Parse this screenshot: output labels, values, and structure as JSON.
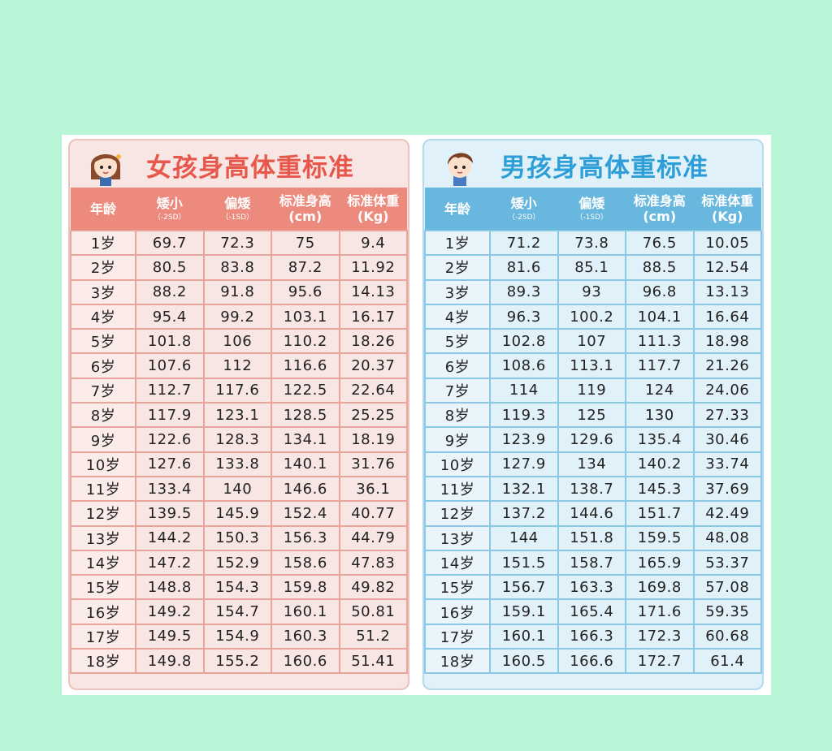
{
  "girl": {
    "title": "女孩身高体重标准",
    "headers": [
      {
        "label": "年龄",
        "sub": ""
      },
      {
        "label": "矮小",
        "sub": "（-2SD）"
      },
      {
        "label": "偏矮",
        "sub": "（-1SD）"
      },
      {
        "label": "标准身高(cm)",
        "sub": ""
      },
      {
        "label": "标准体重(Kg)",
        "sub": ""
      }
    ],
    "rows": [
      [
        "1岁",
        "69.7",
        "72.3",
        "75",
        "9.4"
      ],
      [
        "2岁",
        "80.5",
        "83.8",
        "87.2",
        "11.92"
      ],
      [
        "3岁",
        "88.2",
        "91.8",
        "95.6",
        "14.13"
      ],
      [
        "4岁",
        "95.4",
        "99.2",
        "103.1",
        "16.17"
      ],
      [
        "5岁",
        "101.8",
        "106",
        "110.2",
        "18.26"
      ],
      [
        "6岁",
        "107.6",
        "112",
        "116.6",
        "20.37"
      ],
      [
        "7岁",
        "112.7",
        "117.6",
        "122.5",
        "22.64"
      ],
      [
        "8岁",
        "117.9",
        "123.1",
        "128.5",
        "25.25"
      ],
      [
        "9岁",
        "122.6",
        "128.3",
        "134.1",
        "18.19"
      ],
      [
        "10岁",
        "127.6",
        "133.8",
        "140.1",
        "31.76"
      ],
      [
        "11岁",
        "133.4",
        "140",
        "146.6",
        "36.1"
      ],
      [
        "12岁",
        "139.5",
        "145.9",
        "152.4",
        "40.77"
      ],
      [
        "13岁",
        "144.2",
        "150.3",
        "156.3",
        "44.79"
      ],
      [
        "14岁",
        "147.2",
        "152.9",
        "158.6",
        "47.83"
      ],
      [
        "15岁",
        "148.8",
        "154.3",
        "159.8",
        "49.82"
      ],
      [
        "16岁",
        "149.2",
        "154.7",
        "160.1",
        "50.81"
      ],
      [
        "17岁",
        "149.5",
        "154.9",
        "160.3",
        "51.2"
      ],
      [
        "18岁",
        "149.8",
        "155.2",
        "160.6",
        "51.41"
      ]
    ]
  },
  "boy": {
    "title": "男孩身高体重标准",
    "headers": [
      {
        "label": "年龄",
        "sub": ""
      },
      {
        "label": "矮小",
        "sub": "（-2SD）"
      },
      {
        "label": "偏矮",
        "sub": "（-1SD）"
      },
      {
        "label": "标准身高(cm)",
        "sub": ""
      },
      {
        "label": "标准体重(Kg)",
        "sub": ""
      }
    ],
    "rows": [
      [
        "1岁",
        "71.2",
        "73.8",
        "76.5",
        "10.05"
      ],
      [
        "2岁",
        "81.6",
        "85.1",
        "88.5",
        "12.54"
      ],
      [
        "3岁",
        "89.3",
        "93",
        "96.8",
        "13.13"
      ],
      [
        "4岁",
        "96.3",
        "100.2",
        "104.1",
        "16.64"
      ],
      [
        "5岁",
        "102.8",
        "107",
        "111.3",
        "18.98"
      ],
      [
        "6岁",
        "108.6",
        "113.1",
        "117.7",
        "21.26"
      ],
      [
        "7岁",
        "114",
        "119",
        "124",
        "24.06"
      ],
      [
        "8岁",
        "119.3",
        "125",
        "130",
        "27.33"
      ],
      [
        "9岁",
        "123.9",
        "129.6",
        "135.4",
        "30.46"
      ],
      [
        "10岁",
        "127.9",
        "134",
        "140.2",
        "33.74"
      ],
      [
        "11岁",
        "132.1",
        "138.7",
        "145.3",
        "37.69"
      ],
      [
        "12岁",
        "137.2",
        "144.6",
        "151.7",
        "42.49"
      ],
      [
        "13岁",
        "144",
        "151.8",
        "159.5",
        "48.08"
      ],
      [
        "14岁",
        "151.5",
        "158.7",
        "165.9",
        "53.37"
      ],
      [
        "15岁",
        "156.7",
        "163.3",
        "169.8",
        "57.08"
      ],
      [
        "16岁",
        "159.1",
        "165.4",
        "171.6",
        "59.35"
      ],
      [
        "17岁",
        "160.1",
        "166.3",
        "172.3",
        "60.68"
      ],
      [
        "18岁",
        "160.5",
        "166.6",
        "172.7",
        "61.4"
      ]
    ]
  },
  "colors": {
    "background": "#b8f5d6",
    "girl_accent": "#e8574b",
    "girl_header": "#ec8a7d",
    "boy_accent": "#2d9ed6",
    "boy_header": "#68b7df"
  },
  "icons": {
    "girl_avatar": "girl-avatar-icon",
    "boy_avatar": "boy-avatar-icon"
  }
}
